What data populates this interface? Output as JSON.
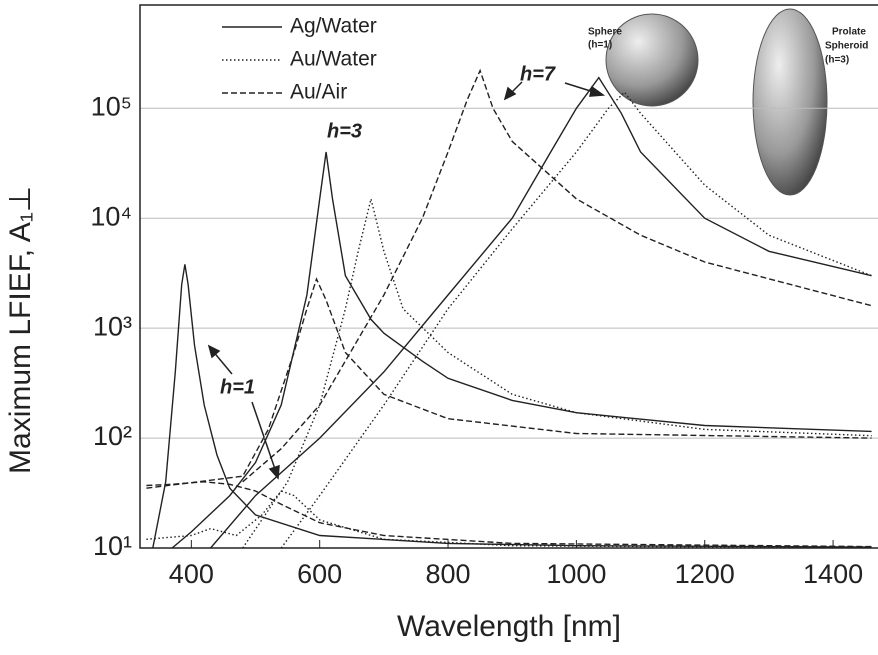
{
  "chart_data": {
    "type": "line",
    "x_label": "Wavelength [nm]",
    "y_label": "Maximum LFIEF, A₁⊥",
    "xlim": [
      320,
      1470
    ],
    "xticks": [
      400,
      600,
      800,
      1000,
      1200,
      1400
    ],
    "ylim": [
      10,
      870000
    ],
    "log_y": true,
    "grid": true,
    "legend": "upper left",
    "yticks": [
      {
        "value": 10,
        "label": "10¹"
      },
      {
        "value": 100,
        "label": "10²"
      },
      {
        "value": 1000,
        "label": "10³"
      },
      {
        "value": 10000,
        "label": "10⁴"
      },
      {
        "value": 100000,
        "label": "10⁵"
      }
    ],
    "series": [
      {
        "name": "Ag/Water",
        "color": "#222222",
        "style": "solid",
        "x": [
          340,
          360,
          375,
          385,
          390,
          395,
          405,
          420,
          440,
          460,
          500,
          600,
          800,
          1000,
          1460
        ],
        "values": [
          10,
          40,
          400,
          2500,
          3800,
          2500,
          700,
          200,
          70,
          35,
          20,
          13,
          11,
          10.5,
          10.2
        ]
      },
      {
        "name": null,
        "color": "#222222",
        "style": "solid",
        "x": [
          370,
          400,
          460,
          500,
          540,
          580,
          600,
          610,
          620,
          640,
          680,
          700,
          760,
          800,
          900,
          1000,
          1200,
          1460
        ],
        "values": [
          10,
          14,
          30,
          60,
          200,
          2000,
          15000,
          40000,
          15000,
          3000,
          1200,
          900,
          500,
          350,
          220,
          170,
          130,
          115
        ]
      },
      {
        "name": null,
        "color": "#222222",
        "style": "solid",
        "x": [
          430,
          500,
          600,
          700,
          800,
          900,
          960,
          1000,
          1035,
          1070,
          1100,
          1200,
          1300,
          1460
        ],
        "values": [
          10,
          30,
          100,
          400,
          2000,
          10000,
          40000,
          100000,
          190000,
          90000,
          40000,
          10000,
          5000,
          3000
        ]
      },
      {
        "name": "Au/Water",
        "color": "#222222",
        "style": "dotted",
        "x": [
          330,
          400,
          430,
          470,
          510,
          540,
          560,
          600,
          700,
          900,
          1460
        ],
        "values": [
          12,
          13,
          15,
          13,
          20,
          33,
          30,
          18,
          12,
          10.5,
          10
        ]
      },
      {
        "name": null,
        "color": "#222222",
        "style": "dotted",
        "x": [
          480,
          550,
          600,
          640,
          660,
          680,
          700,
          730,
          800,
          900,
          1000,
          1200,
          1460
        ],
        "values": [
          10,
          40,
          200,
          1500,
          5000,
          15000,
          5000,
          1500,
          600,
          250,
          170,
          120,
          105
        ]
      },
      {
        "name": null,
        "color": "#222222",
        "style": "dotted",
        "x": [
          540,
          600,
          700,
          800,
          900,
          1000,
          1050,
          1075,
          1100,
          1200,
          1300,
          1460
        ],
        "values": [
          10,
          30,
          200,
          1500,
          8000,
          40000,
          100000,
          140000,
          90000,
          20000,
          7000,
          3000
        ]
      },
      {
        "name": "Au/Air",
        "color": "#222222",
        "style": "dashed",
        "x": [
          330,
          370,
          420,
          460,
          500,
          540,
          600,
          700,
          900,
          1460
        ],
        "values": [
          37,
          38,
          40,
          38,
          33,
          25,
          17,
          13,
          11,
          10.3
        ]
      },
      {
        "name": null,
        "color": "#222222",
        "style": "dashed",
        "x": [
          330,
          480,
          520,
          560,
          580,
          595,
          610,
          640,
          700,
          800,
          1000,
          1460
        ],
        "values": [
          35,
          45,
          120,
          600,
          1500,
          2800,
          1800,
          600,
          250,
          150,
          110,
          100
        ]
      },
      {
        "name": null,
        "color": "#222222",
        "style": "dashed",
        "x": [
          480,
          540,
          600,
          700,
          760,
          800,
          830,
          850,
          870,
          900,
          1000,
          1100,
          1200,
          1460
        ],
        "values": [
          40,
          80,
          200,
          2000,
          10000,
          40000,
          120000,
          220000,
          100000,
          50000,
          15000,
          7000,
          4000,
          1600
        ]
      }
    ],
    "annotations": [
      "h=7",
      "h=3",
      "h=1"
    ],
    "inset_labels": [
      "Sphere",
      "(h=1)",
      "Prolate",
      "Spheroid",
      "(h=3)"
    ]
  }
}
